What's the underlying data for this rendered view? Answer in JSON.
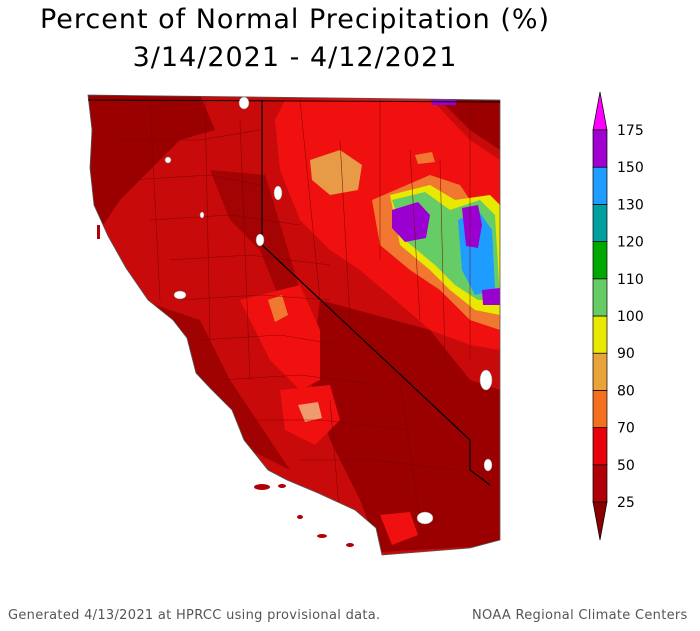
{
  "title": {
    "line1": "Percent of Normal Precipitation (%)",
    "line2": "3/14/2021 - 4/12/2021"
  },
  "legend": {
    "bins": [
      {
        "label": "25",
        "color": "#b00008"
      },
      {
        "label": "50",
        "color": "#e8000c"
      },
      {
        "label": "70",
        "color": "#f4701e"
      },
      {
        "label": "80",
        "color": "#e8a33a"
      },
      {
        "label": "90",
        "color": "#e8e800"
      },
      {
        "label": "100",
        "color": "#66cc66"
      },
      {
        "label": "110",
        "color": "#00a800"
      },
      {
        "label": "120",
        "color": "#00a0a0"
      },
      {
        "label": "130",
        "color": "#1e9cff"
      },
      {
        "label": "150",
        "color": "#a000d0"
      },
      {
        "label": "175",
        "color": "#ff00ff"
      }
    ],
    "bottom_color": "#8a0000",
    "top_color": "#ff00ff"
  },
  "map": {
    "base_color": "#c80a0a",
    "dark_color": "#9a0000",
    "region_colors": {
      "dark": "#9a0000",
      "red": "#c80a0a",
      "bright_red": "#f01010",
      "orange": "#f07830",
      "light_orange": "#e8a050",
      "yellow": "#e8e800",
      "green": "#66cc66",
      "cyan": "#1e9cff",
      "purple": "#9a00d0",
      "magenta": "#d000ff"
    }
  },
  "footer": {
    "left": "Generated 4/13/2021 at HPRCC using provisional data.",
    "right": "NOAA Regional Climate Centers"
  }
}
